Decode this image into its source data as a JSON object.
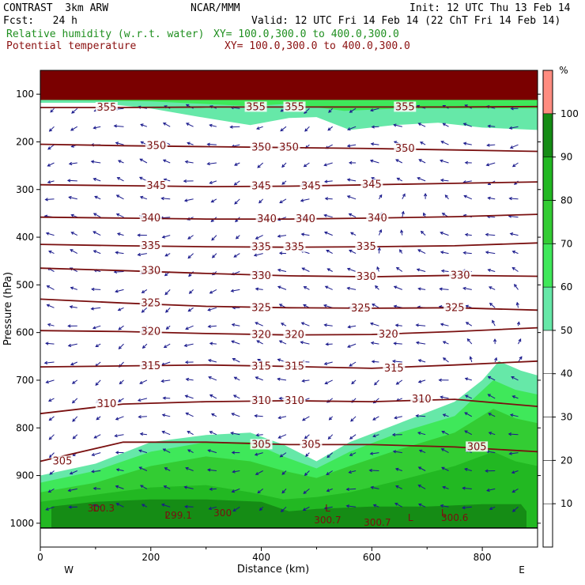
{
  "header": {
    "model_line": "CONTRAST  3km ARW",
    "org": "NCAR/MMM",
    "init": "Init: 12 UTC Thu 13 Feb 14",
    "fcst": "Fcst:   24 h",
    "valid": "Valid: 12 UTC Fri 14 Feb 14 (22 ChT Fri 14 Feb 14)",
    "field1": "Relative humidity (w.r.t. water)",
    "field1_xy": "XY= 100.0,300.0 to 400.0,300.0",
    "field2": "Potential temperature",
    "field2_xy": "XY= 100.0,300.0 to 400.0,300.0"
  },
  "colors": {
    "theta": "#7a1010",
    "wind": "#1a1a8c",
    "rh_50": "#66e8a8",
    "rh_60": "#3fe85a",
    "rh_70": "#33cc33",
    "rh_80": "#22b822",
    "rh_90": "#158c15",
    "rh_100": "#ff8c80",
    "terrain_top": "#7a0000"
  },
  "chart_data": {
    "type": "contour",
    "xlabel": "Distance (km)",
    "ylabel": "Pressure (hPa)",
    "xlim": [
      0,
      900
    ],
    "ylim": [
      1050,
      50
    ],
    "y_scale": "linear",
    "x_ticks": [
      "0",
      "200",
      "400",
      "600",
      "800"
    ],
    "y_ticks": [
      "100",
      "200",
      "300",
      "400",
      "500",
      "600",
      "700",
      "800",
      "900",
      "1000"
    ],
    "left_label": "W",
    "right_label": "E",
    "colorbar": {
      "unit": "%",
      "labels": [
        "10",
        "20",
        "30",
        "40",
        "50",
        "60",
        "70",
        "80",
        "90",
        "100"
      ]
    },
    "theta_lines": [
      {
        "value": 355,
        "p": [
          128,
          128,
          127,
          127,
          127,
          127,
          126
        ],
        "labels": [
          [
            120,
            355
          ],
          [
            390,
            355
          ],
          [
            460,
            355
          ],
          [
            660,
            355
          ]
        ]
      },
      {
        "value": 350,
        "p": [
          205,
          208,
          210,
          212,
          214,
          217,
          220
        ],
        "labels": [
          [
            210,
            350
          ],
          [
            400,
            350
          ],
          [
            450,
            350
          ],
          [
            660,
            350
          ]
        ]
      },
      {
        "value": 345,
        "p": [
          290,
          292,
          294,
          293,
          290,
          287,
          284
        ],
        "labels": [
          [
            210,
            345
          ],
          [
            400,
            345
          ],
          [
            490,
            345
          ],
          [
            600,
            345
          ]
        ]
      },
      {
        "value": 340,
        "p": [
          358,
          360,
          362,
          362,
          360,
          357,
          352
        ],
        "labels": [
          [
            200,
            340
          ],
          [
            410,
            340
          ],
          [
            480,
            340
          ],
          [
            610,
            340
          ]
        ]
      },
      {
        "value": 335,
        "p": [
          415,
          418,
          420,
          421,
          420,
          418,
          412
        ],
        "labels": [
          [
            200,
            335
          ],
          [
            400,
            335
          ],
          [
            460,
            335
          ],
          [
            590,
            335
          ]
        ]
      },
      {
        "value": 330,
        "p": [
          465,
          470,
          476,
          481,
          483,
          480,
          482
        ],
        "labels": [
          [
            200,
            330
          ],
          [
            400,
            330
          ],
          [
            590,
            330
          ],
          [
            760,
            330
          ]
        ]
      },
      {
        "value": 325,
        "p": [
          530,
          538,
          545,
          548,
          549,
          548,
          553
        ],
        "labels": [
          [
            200,
            325
          ],
          [
            400,
            325
          ],
          [
            580,
            325
          ],
          [
            750,
            325
          ]
        ]
      },
      {
        "value": 320,
        "p": [
          596,
          598,
          602,
          605,
          604,
          598,
          590
        ],
        "labels": [
          [
            200,
            320
          ],
          [
            400,
            320
          ],
          [
            460,
            320
          ],
          [
            630,
            320
          ]
        ]
      },
      {
        "value": 315,
        "p": [
          672,
          670,
          668,
          671,
          675,
          668,
          660
        ],
        "labels": [
          [
            200,
            315
          ],
          [
            400,
            315
          ],
          [
            460,
            315
          ],
          [
            640,
            315
          ]
        ]
      },
      {
        "value": 310,
        "p": [
          770,
          750,
          745,
          743,
          745,
          740,
          755
        ],
        "labels": [
          [
            120,
            310
          ],
          [
            400,
            310
          ],
          [
            460,
            310
          ],
          [
            690,
            310
          ]
        ]
      },
      {
        "value": 305,
        "p": [
          870,
          830,
          830,
          835,
          835,
          840,
          850
        ],
        "labels": [
          [
            40,
            305
          ],
          [
            400,
            305
          ],
          [
            490,
            305
          ],
          [
            790,
            305
          ]
        ]
      }
    ],
    "contour_label_extra": [
      [
        "L",
        100,
        975
      ],
      [
        "300.3",
        110,
        975
      ],
      [
        "L",
        230,
        990
      ],
      [
        "299.1",
        250,
        990
      ],
      [
        "300",
        330,
        985
      ],
      [
        "L",
        520,
        975
      ],
      [
        "300.7",
        520,
        1000
      ],
      [
        "300.7",
        610,
        1005
      ],
      [
        "L",
        670,
        995
      ],
      [
        "L",
        730,
        985
      ],
      [
        "300.6",
        750,
        995
      ]
    ],
    "rh_region_notes": [
      "moist layer near 100-200 hPa",
      "moist boundary layer 800-1000 hPa",
      "elevated moist plume near 820 km"
    ]
  }
}
